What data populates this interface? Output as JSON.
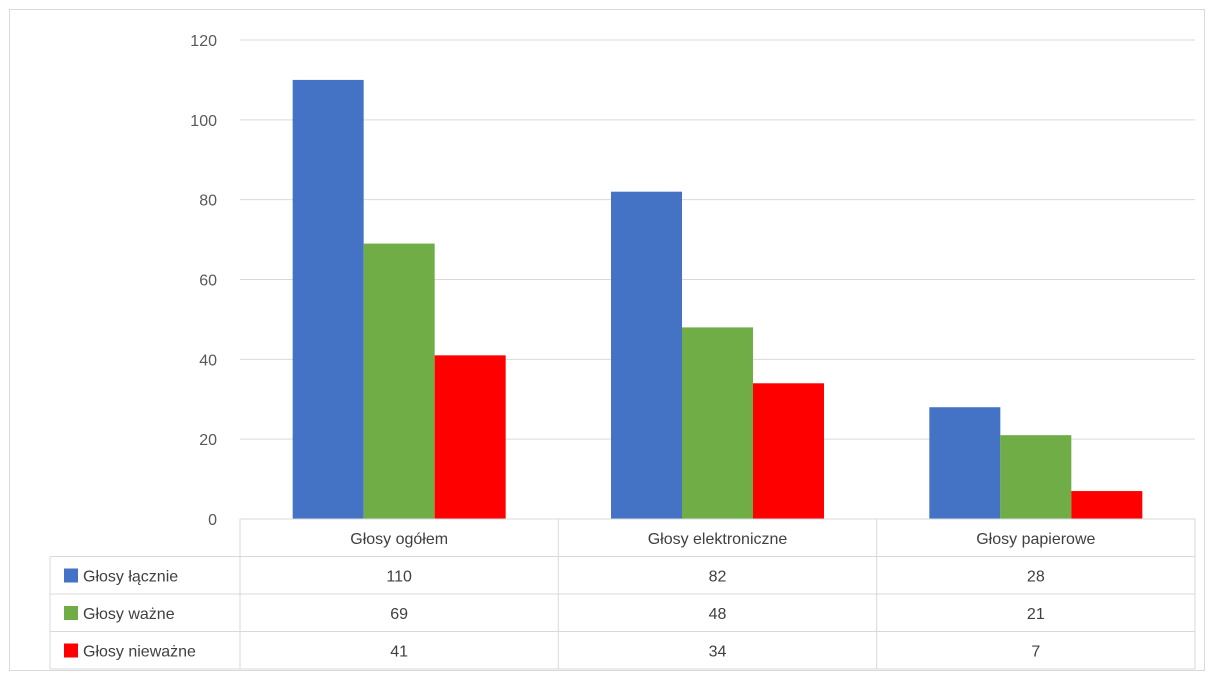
{
  "chart_data": {
    "type": "bar",
    "categories": [
      "Głosy ogółem",
      "Głosy elektroniczne",
      "Głosy papierowe"
    ],
    "series": [
      {
        "name": "Głosy łącznie",
        "values": [
          110,
          82,
          28
        ],
        "color": "#4472C4"
      },
      {
        "name": "Głosy ważne",
        "values": [
          69,
          48,
          21
        ],
        "color": "#70AD47"
      },
      {
        "name": "Głosy nieważne",
        "values": [
          41,
          34,
          7
        ],
        "color": "#FF0000"
      }
    ],
    "yticks": [
      "0",
      "20",
      "40",
      "60",
      "80",
      "100",
      "120"
    ],
    "ylim": [
      0,
      120
    ],
    "grid": true,
    "legend": "data table below chart"
  }
}
